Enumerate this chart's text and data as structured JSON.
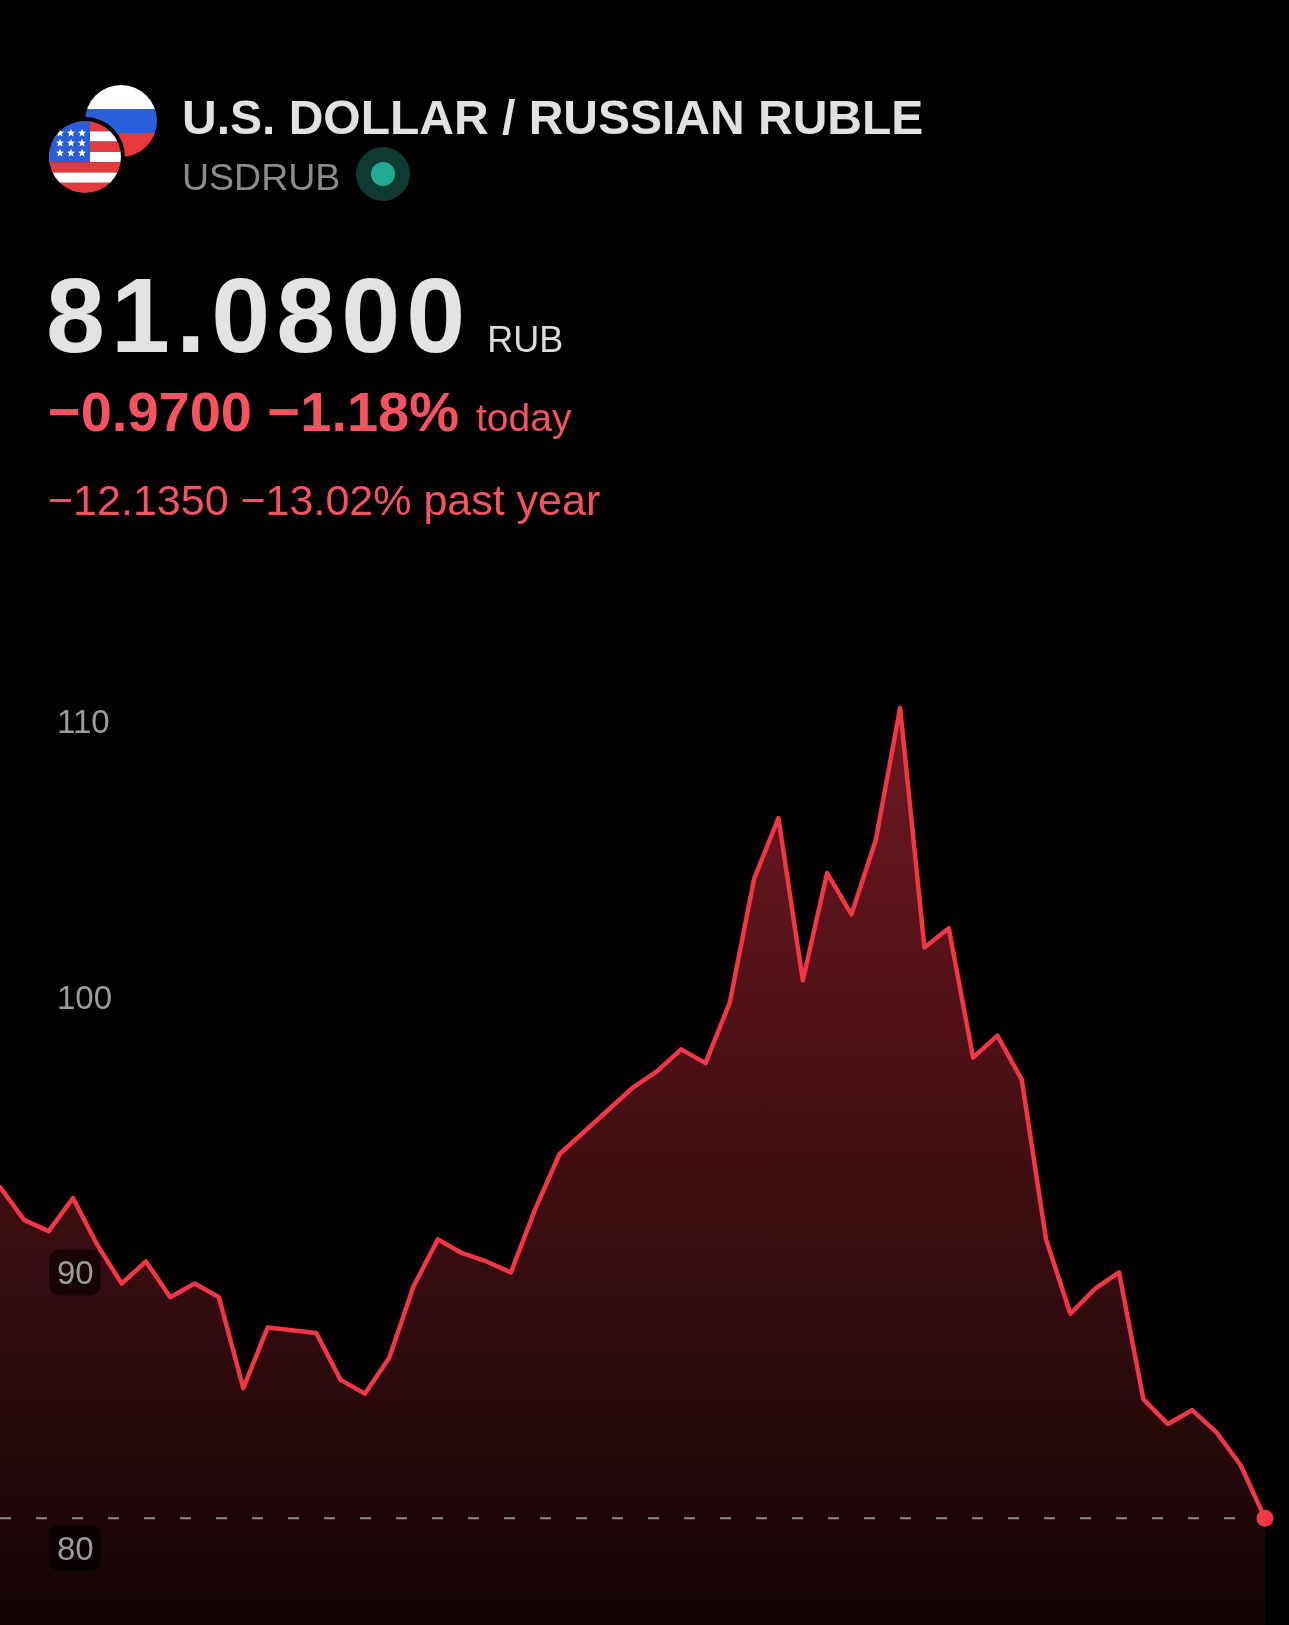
{
  "chart_data": {
    "type": "area",
    "title": "U.S. DOLLAR / RUSSIAN RUBLE",
    "subtitle": "USDRUB",
    "annotations": [
      "81.0800",
      "RUB",
      "−0.9700 −1.18%",
      "today",
      "−12.1350 −13.02% past year"
    ],
    "categories": [
      null,
      null,
      null,
      null,
      null,
      null,
      null,
      null,
      null,
      null,
      null,
      null,
      null,
      null,
      null,
      null,
      null,
      null,
      null,
      null,
      null,
      null,
      null,
      null,
      null,
      null,
      null,
      null,
      null,
      null,
      null,
      null,
      null,
      null,
      null,
      null,
      null,
      null,
      null,
      null,
      null,
      null,
      null,
      null,
      null,
      null,
      null,
      null,
      null,
      null,
      null,
      null,
      null
    ],
    "values": [
      93.1,
      91.9,
      91.5,
      92.7,
      91.0,
      89.6,
      90.4,
      89.1,
      89.6,
      89.1,
      85.8,
      88.0,
      87.9,
      87.8,
      86.1,
      85.6,
      86.9,
      89.5,
      91.2,
      90.7,
      90.4,
      90.0,
      92.3,
      94.3,
      95.1,
      95.9,
      96.7,
      97.3,
      98.1,
      97.6,
      99.8,
      104.3,
      106.5,
      100.6,
      104.5,
      103.0,
      105.7,
      110.5,
      101.8,
      102.5,
      97.8,
      98.6,
      97.0,
      91.2,
      88.5,
      89.4,
      90.0,
      85.4,
      84.5,
      85.0,
      84.2,
      83.0,
      81.08
    ],
    "color": "#f23645",
    "ylim": [
      77.2,
      136.2
    ],
    "yticks": [
      80,
      90,
      100,
      110
    ],
    "tick_labels": "y",
    "ref_lines": [
      {
        "axis": "y",
        "value": 81.08,
        "color": "#8c8c8c",
        "line_style": "dashed"
      }
    ]
  }
}
